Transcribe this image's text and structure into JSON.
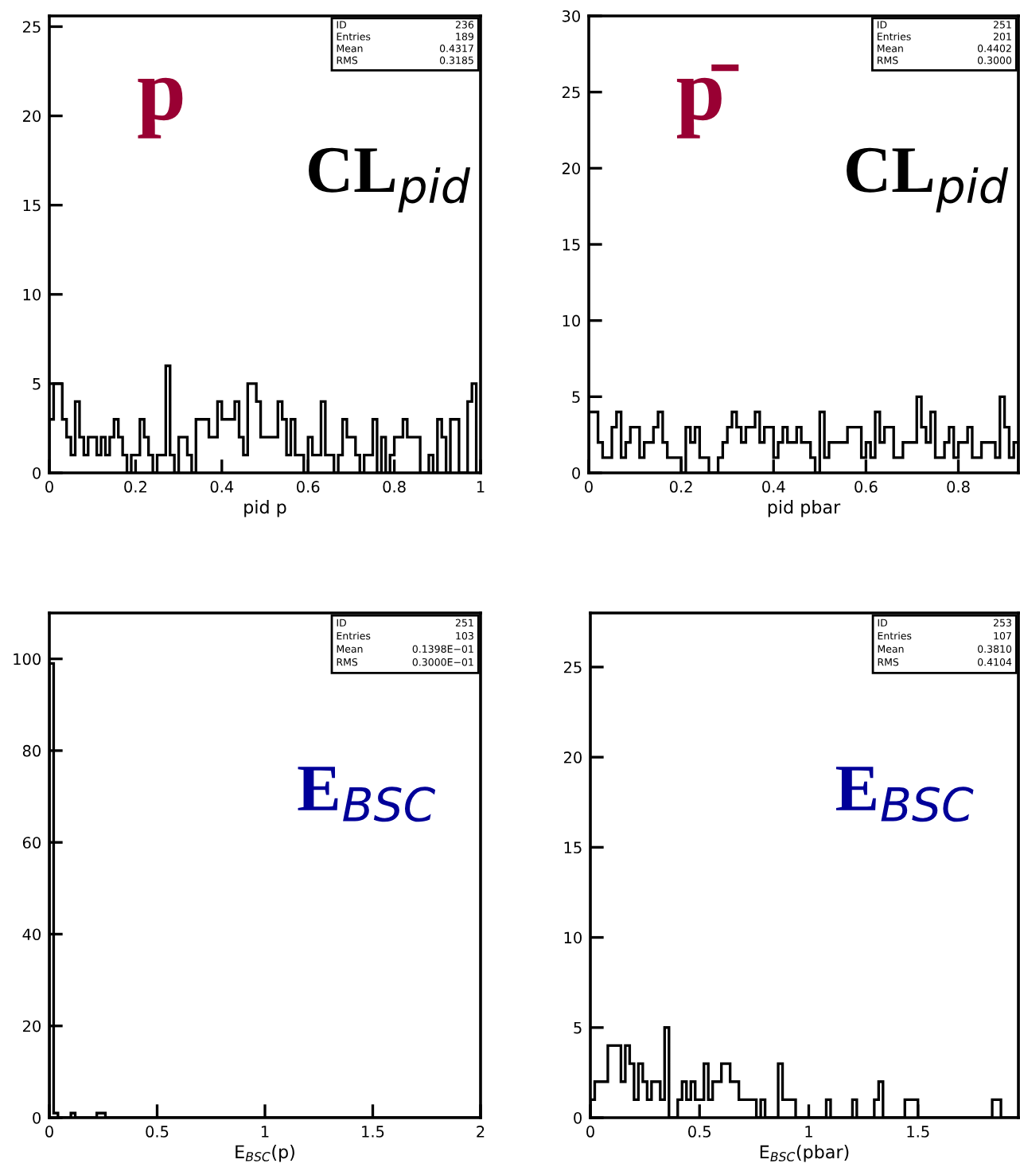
{
  "chart_data": [
    {
      "type": "histogram",
      "color": "#000000",
      "xlabel": "pid p",
      "xlim": [
        0,
        1
      ],
      "xticks": [
        0,
        0.2,
        0.4,
        0.6,
        0.8,
        1
      ],
      "ylim": [
        0,
        25.6
      ],
      "yticks": [
        0,
        5,
        10,
        15,
        20,
        25
      ],
      "grid": false,
      "legend": false,
      "bins": [
        0,
        0.01,
        0.02,
        0.03,
        0.04,
        0.05,
        0.06,
        0.07,
        0.08,
        0.09,
        0.1,
        0.11,
        0.12,
        0.13,
        0.14,
        0.15,
        0.16,
        0.17,
        0.18,
        0.19,
        0.2,
        0.21,
        0.22,
        0.23,
        0.24,
        0.25,
        0.26,
        0.27,
        0.28,
        0.29,
        0.3,
        0.31,
        0.32,
        0.33,
        0.34,
        0.35,
        0.36,
        0.37,
        0.38,
        0.39,
        0.4,
        0.41,
        0.42,
        0.43,
        0.44,
        0.45,
        0.46,
        0.47,
        0.48,
        0.49,
        0.5,
        0.51,
        0.52,
        0.53,
        0.54,
        0.55,
        0.56,
        0.57,
        0.58,
        0.59,
        0.6,
        0.61,
        0.62,
        0.63,
        0.64,
        0.65,
        0.66,
        0.67,
        0.68,
        0.69,
        0.7,
        0.71,
        0.72,
        0.73,
        0.74,
        0.75,
        0.76,
        0.77,
        0.78,
        0.79,
        0.8,
        0.81,
        0.82,
        0.83,
        0.84,
        0.85,
        0.86,
        0.87,
        0.88,
        0.89,
        0.9,
        0.91,
        0.92,
        0.93,
        0.94,
        0.95,
        0.96,
        0.97,
        0.98,
        0.99,
        1
      ],
      "values": [
        3,
        5,
        5,
        3,
        2,
        1,
        4,
        2,
        1,
        2,
        2,
        1,
        2,
        1,
        2,
        3,
        2,
        1,
        0,
        1,
        1,
        3,
        2,
        1,
        0,
        1,
        1,
        6,
        1,
        0,
        2,
        2,
        1,
        0,
        3,
        3,
        3,
        2,
        2,
        4,
        3,
        3,
        3,
        4,
        2,
        1,
        5,
        5,
        4,
        2,
        2,
        2,
        2,
        4,
        3,
        1,
        3,
        1,
        1,
        0,
        2,
        1,
        1,
        4,
        1,
        1,
        0,
        1,
        3,
        2,
        2,
        1,
        0,
        1,
        1,
        3,
        0,
        2,
        0,
        1,
        2,
        2,
        3,
        2,
        2,
        2,
        0,
        0,
        1,
        0,
        3,
        2,
        0,
        3,
        3,
        0,
        0,
        4,
        5,
        0
      ],
      "annotations": [
        "p",
        "CL$_{pid}$",
        "ID",
        "236",
        "Entries",
        "189",
        "Mean",
        "0.4317",
        "RMS",
        "0.3185"
      ]
    },
    {
      "type": "histogram",
      "color": "#000000",
      "xlabel": "pid pbar",
      "xlim": [
        0,
        0.93
      ],
      "xticks": [
        0,
        0.2,
        0.4,
        0.6,
        0.8
      ],
      "ylim": [
        0,
        30
      ],
      "yticks": [
        0,
        5,
        10,
        15,
        20,
        25,
        30
      ],
      "grid": false,
      "legend": false,
      "bins": [
        0,
        0.01,
        0.02,
        0.03,
        0.04,
        0.05,
        0.06,
        0.07,
        0.08,
        0.09,
        0.1,
        0.11,
        0.12,
        0.13,
        0.14,
        0.15,
        0.16,
        0.17,
        0.18,
        0.19,
        0.2,
        0.21,
        0.22,
        0.23,
        0.24,
        0.25,
        0.26,
        0.27,
        0.28,
        0.29,
        0.3,
        0.31,
        0.32,
        0.33,
        0.34,
        0.35,
        0.36,
        0.37,
        0.38,
        0.39,
        0.4,
        0.41,
        0.42,
        0.43,
        0.44,
        0.45,
        0.46,
        0.47,
        0.48,
        0.49,
        0.5,
        0.51,
        0.52,
        0.53,
        0.54,
        0.55,
        0.56,
        0.57,
        0.58,
        0.59,
        0.6,
        0.61,
        0.62,
        0.63,
        0.64,
        0.65,
        0.66,
        0.67,
        0.68,
        0.69,
        0.7,
        0.71,
        0.72,
        0.73,
        0.74,
        0.75,
        0.76,
        0.77,
        0.78,
        0.79,
        0.8,
        0.81,
        0.82,
        0.83,
        0.84,
        0.85,
        0.86,
        0.87,
        0.88,
        0.89,
        0.9,
        0.91,
        0.92,
        0.93
      ],
      "values": [
        4,
        4,
        2,
        1,
        1,
        3,
        4,
        1,
        2,
        3,
        3,
        1,
        2,
        2,
        3,
        4,
        2,
        1,
        1,
        1,
        0,
        3,
        2,
        3,
        1,
        1,
        0,
        0,
        1,
        2,
        3,
        4,
        3,
        2,
        3,
        3,
        4,
        2,
        3,
        3,
        1,
        2,
        3,
        2,
        2,
        3,
        2,
        2,
        1,
        0,
        4,
        1,
        2,
        2,
        2,
        2,
        3,
        3,
        3,
        1,
        2,
        1,
        4,
        2,
        3,
        3,
        1,
        1,
        2,
        2,
        2,
        5,
        3,
        2,
        4,
        1,
        1,
        2,
        3,
        1,
        2,
        2,
        3,
        1,
        1,
        2,
        2,
        2,
        1,
        5,
        3,
        1,
        2
      ],
      "annotations": [
        "p̄",
        "CL$_{pid}$",
        "ID",
        "251",
        "Entries",
        "201",
        "Mean",
        "0.4402",
        "RMS",
        "0.3000"
      ]
    },
    {
      "type": "histogram",
      "color": "#000000",
      "xlabel": "E$_{BSC}$(p)",
      "xlim": [
        0,
        2
      ],
      "xticks": [
        0,
        0.5,
        1,
        1.5,
        2
      ],
      "ylim": [
        0,
        110
      ],
      "yticks": [
        0,
        20,
        40,
        60,
        80,
        100
      ],
      "grid": false,
      "legend": false,
      "bins": [
        0,
        0.02,
        0.04,
        0.06,
        0.08,
        0.1,
        0.12,
        0.14,
        0.16,
        0.18,
        0.2,
        0.22,
        0.24,
        0.26,
        0.28,
        0.3,
        0.32,
        0.34,
        0.36,
        0.38,
        0.4,
        0.42,
        0.44,
        0.46,
        0.48,
        0.5,
        0.52,
        0.54,
        0.56,
        0.58,
        0.6,
        0.62,
        0.64,
        0.66,
        0.68,
        0.7,
        0.72,
        0.74,
        0.76,
        0.78,
        0.8,
        0.82,
        0.84,
        0.86,
        0.88,
        0.9,
        0.92,
        0.94,
        0.96,
        0.98,
        1,
        1.02,
        1.04,
        1.06,
        1.08,
        1.1,
        1.12,
        1.14,
        1.16,
        1.18,
        1.2,
        1.22,
        1.24,
        1.26,
        1.28,
        1.3,
        1.32,
        1.34,
        1.36,
        1.38,
        1.4,
        1.42,
        1.44,
        1.46,
        1.48,
        1.5,
        1.52,
        1.54,
        1.56,
        1.58,
        1.6,
        1.62,
        1.64,
        1.66,
        1.68,
        1.7,
        1.72,
        1.74,
        1.76,
        1.78,
        1.8,
        1.82,
        1.84,
        1.86,
        1.88,
        1.9,
        1.92,
        1.94,
        1.96,
        1.98,
        2
      ],
      "values": [
        99,
        1,
        0,
        0,
        0,
        1,
        0,
        0,
        0,
        0,
        0,
        1,
        1,
        0,
        0,
        0,
        0,
        0,
        0,
        0,
        0,
        0,
        0,
        0,
        0,
        0,
        0,
        0,
        0,
        0,
        0,
        0,
        0,
        0,
        0,
        0,
        0,
        0,
        0,
        0,
        0,
        0,
        0,
        0,
        0,
        0,
        0,
        0,
        0,
        0,
        0,
        0,
        0,
        0,
        0,
        0,
        0,
        0,
        0,
        0,
        0,
        0,
        0,
        0,
        0,
        0,
        0,
        0,
        0,
        0,
        0,
        0,
        0,
        0,
        0,
        0,
        0,
        0,
        0,
        0,
        0,
        0,
        0,
        0,
        0,
        0,
        0,
        0,
        0,
        0,
        0,
        0,
        0,
        0,
        0,
        0,
        0,
        0,
        0,
        0
      ],
      "annotations": [
        "E$_{BSC}$",
        "ID",
        "251",
        "Entries",
        "103",
        "Mean",
        "0.1398E−01",
        "RMS",
        "0.3000E−01"
      ]
    },
    {
      "type": "histogram",
      "color": "#000000",
      "xlabel": "E$_{BSC}$(pbar)",
      "xlim": [
        0,
        1.96
      ],
      "xticks": [
        0,
        0.5,
        1,
        1.5
      ],
      "ylim": [
        0,
        28
      ],
      "yticks": [
        0,
        5,
        10,
        15,
        20,
        25
      ],
      "grid": false,
      "legend": false,
      "bins": [
        0,
        0.02,
        0.04,
        0.06,
        0.08,
        0.1,
        0.12,
        0.14,
        0.16,
        0.18,
        0.2,
        0.22,
        0.24,
        0.26,
        0.28,
        0.3,
        0.32,
        0.34,
        0.36,
        0.38,
        0.4,
        0.42,
        0.44,
        0.46,
        0.48,
        0.5,
        0.52,
        0.54,
        0.56,
        0.58,
        0.6,
        0.62,
        0.64,
        0.66,
        0.68,
        0.7,
        0.72,
        0.74,
        0.76,
        0.78,
        0.8,
        0.82,
        0.84,
        0.86,
        0.88,
        0.9,
        0.92,
        0.94,
        0.96,
        0.98,
        1,
        1.02,
        1.04,
        1.06,
        1.08,
        1.1,
        1.12,
        1.14,
        1.16,
        1.18,
        1.2,
        1.22,
        1.24,
        1.26,
        1.28,
        1.3,
        1.32,
        1.34,
        1.36,
        1.38,
        1.4,
        1.42,
        1.44,
        1.46,
        1.48,
        1.5,
        1.52,
        1.54,
        1.56,
        1.58,
        1.6,
        1.62,
        1.64,
        1.66,
        1.68,
        1.7,
        1.72,
        1.74,
        1.76,
        1.78,
        1.8,
        1.82,
        1.84,
        1.86,
        1.88,
        1.9,
        1.92,
        1.94,
        1.96
      ],
      "values": [
        1,
        2,
        2,
        2,
        4,
        4,
        4,
        2,
        4,
        3,
        1,
        3,
        2,
        1,
        2,
        2,
        1,
        5,
        0,
        0,
        1,
        2,
        1,
        2,
        1,
        1,
        3,
        1,
        2,
        2,
        3,
        3,
        2,
        2,
        1,
        1,
        1,
        1,
        0,
        1,
        0,
        0,
        0,
        3,
        1,
        1,
        1,
        0,
        0,
        0,
        0,
        0,
        0,
        0,
        1,
        0,
        0,
        0,
        0,
        0,
        1,
        0,
        0,
        0,
        0,
        1,
        2,
        0,
        0,
        0,
        0,
        0,
        1,
        1,
        1,
        0,
        0,
        0,
        0,
        0,
        0,
        0,
        0,
        0,
        0,
        0,
        0,
        0,
        0,
        0,
        0,
        0,
        1,
        1,
        0,
        0,
        0,
        0
      ],
      "annotations": [
        "E$_{BSC}$",
        "ID",
        "253",
        "Entries",
        "107",
        "Mean",
        "0.3810",
        "RMS",
        "0.4104"
      ]
    }
  ]
}
